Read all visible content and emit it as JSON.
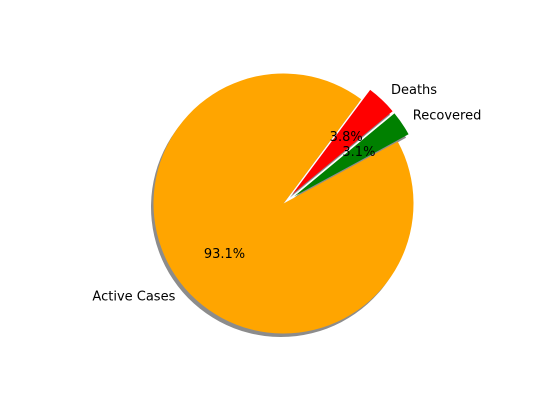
{
  "chart_data": {
    "type": "pie",
    "title": "",
    "categories": [
      "Active Cases",
      "Deaths",
      "Recovered"
    ],
    "values": [
      93.1,
      3.8,
      3.1
    ],
    "percent_labels": [
      "93.1%",
      "3.8%",
      "3.1%"
    ],
    "colors": [
      "#ffa500",
      "#ff0000",
      "#008000"
    ],
    "exploded": [
      false,
      true,
      true
    ],
    "shadow": true,
    "start_angle_deg": 28.45,
    "direction": "clockwise",
    "legend": "none",
    "grid": false
  }
}
